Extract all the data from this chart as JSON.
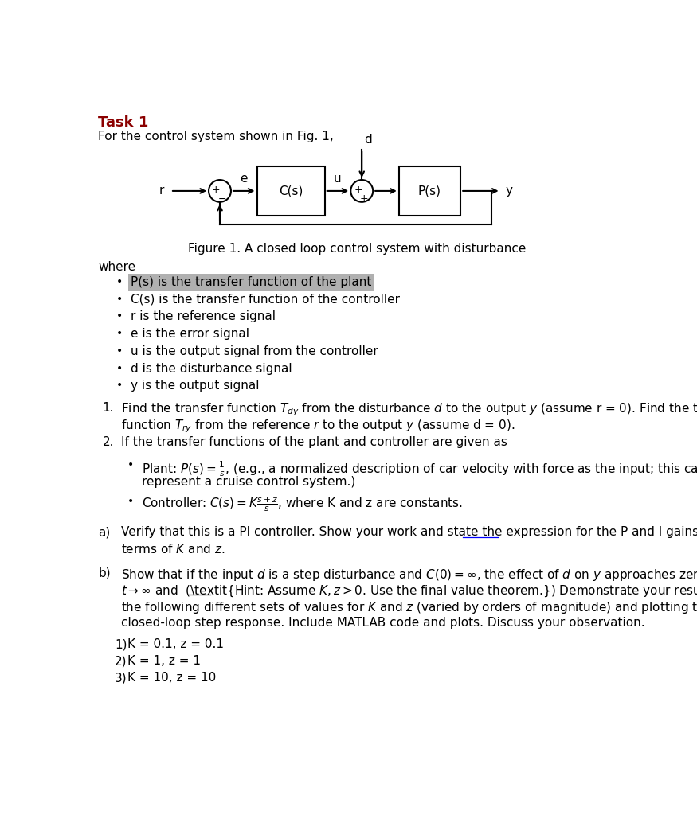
{
  "title": "Task 1",
  "subtitle": "For the control system shown in Fig. 1,",
  "figure_caption": "Figure 1. A closed loop control system with disturbance",
  "where_label": "where",
  "bullets": [
    "P(s) is the transfer function of the plant",
    "C(s) is the transfer function of the controller",
    "r is the reference signal",
    "e is the error signal",
    "u is the output signal from the controller",
    "d is the disturbance signal",
    "y is the output signal"
  ],
  "highlight_bullet_index": 0,
  "highlight_color": "#b0b0b0",
  "bg_color": "#ffffff",
  "title_color": "#8b0000",
  "text_color": "#000000",
  "kz_values": [
    "K = 0.1, z = 0.1",
    "K = 1, z = 1",
    "K = 10, z = 10"
  ]
}
